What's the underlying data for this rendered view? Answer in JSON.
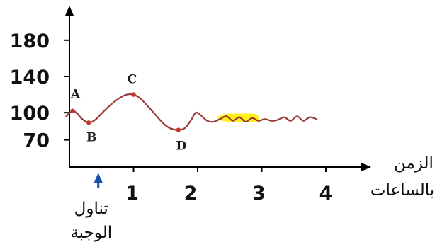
{
  "chart_data": {
    "type": "line",
    "title": "",
    "ylabel": "",
    "xlabel_lines": [
      "الزمن",
      "بالساعات"
    ],
    "x_ticks": [
      1,
      2,
      3,
      4
    ],
    "y_ticks": [
      70,
      100,
      140,
      180
    ],
    "xlim": [
      -0.1,
      4.6
    ],
    "ylim": [
      40,
      198
    ],
    "grid": false,
    "legend": "none",
    "series": [
      {
        "points": [
          [
            -0.05,
            96
          ],
          [
            0.05,
            102
          ],
          [
            0.12,
            99
          ],
          [
            0.2,
            93
          ],
          [
            0.3,
            89
          ],
          [
            0.4,
            92
          ],
          [
            0.5,
            99
          ],
          [
            0.6,
            106
          ],
          [
            0.7,
            112
          ],
          [
            0.8,
            117
          ],
          [
            0.9,
            120
          ],
          [
            1.0,
            120
          ],
          [
            1.1,
            116
          ],
          [
            1.2,
            109
          ],
          [
            1.3,
            101
          ],
          [
            1.4,
            93
          ],
          [
            1.5,
            86
          ],
          [
            1.6,
            82
          ],
          [
            1.7,
            81
          ],
          [
            1.8,
            83
          ],
          [
            1.9,
            92
          ],
          [
            1.97,
            100
          ],
          [
            2.05,
            97
          ],
          [
            2.15,
            91
          ],
          [
            2.25,
            90
          ],
          [
            2.35,
            93
          ],
          [
            2.45,
            96
          ],
          [
            2.55,
            91
          ],
          [
            2.65,
            95
          ],
          [
            2.75,
            90
          ],
          [
            2.85,
            94
          ],
          [
            2.95,
            91
          ],
          [
            3.05,
            93
          ],
          [
            3.15,
            91
          ],
          [
            3.25,
            92
          ],
          [
            3.35,
            95
          ],
          [
            3.45,
            91
          ],
          [
            3.55,
            96
          ],
          [
            3.65,
            91
          ],
          [
            3.75,
            95
          ],
          [
            3.85,
            93
          ]
        ],
        "color": "#9a3a3a"
      }
    ],
    "highlight_band": {
      "x": [
        2.3,
        2.95
      ],
      "y": [
        90,
        99
      ],
      "color": "#ffee00"
    },
    "point_labels": [
      {
        "text": "A",
        "x": 0.05,
        "y": 102
      },
      {
        "text": "B",
        "x": 0.3,
        "y": 89
      },
      {
        "text": "C",
        "x": 1.0,
        "y": 120
      },
      {
        "text": "D",
        "x": 1.7,
        "y": 81
      }
    ],
    "annotation": {
      "lines": [
        "تناول",
        "الوجبة"
      ],
      "x": 0.45,
      "arrow_color": "#1b4fa8"
    },
    "colors": {
      "axis": "#000000",
      "line": "#9a3a3a",
      "arrow": "#1b4fa8",
      "highlight": "#ffee00"
    }
  }
}
